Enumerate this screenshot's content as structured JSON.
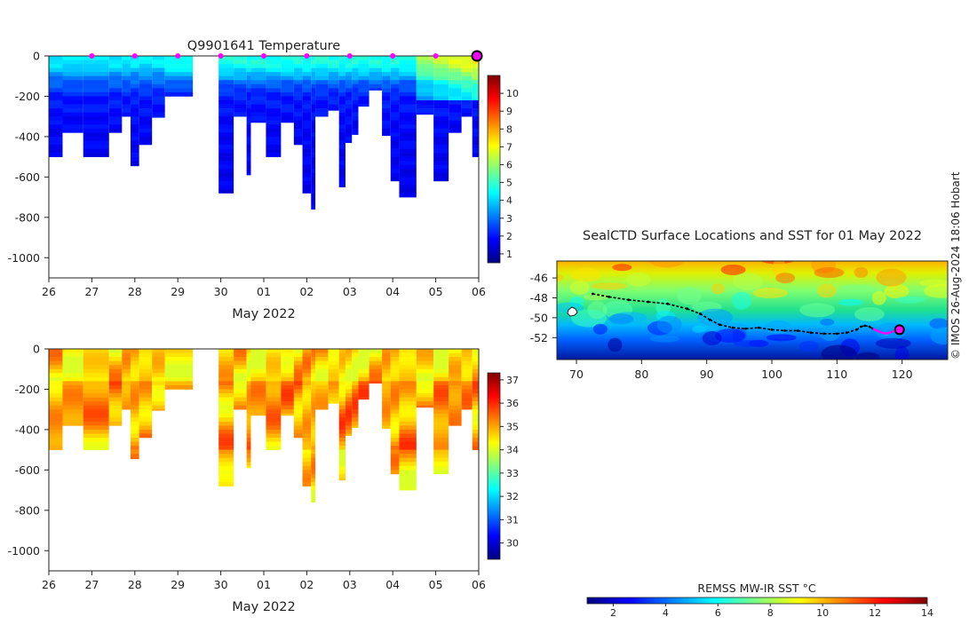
{
  "chart_data": [
    {
      "type": "heatmap",
      "title": "Q9901641  Temperature",
      "xlabel": "May 2022",
      "ylabel": "",
      "xlim": [
        26,
        36
      ],
      "ylim": [
        -1100,
        0
      ],
      "xtick_labels": [
        "26",
        "27",
        "28",
        "29",
        "30",
        "01",
        "02",
        "03",
        "04",
        "05",
        "06"
      ],
      "ytick_labels": [
        "0",
        "-200",
        "-400",
        "-600",
        "-800",
        "-1000"
      ],
      "yticks": [
        0,
        -200,
        -400,
        -600,
        -800,
        -1000
      ],
      "colorbar_ticks": [
        1,
        2,
        3,
        4,
        5,
        6,
        7,
        8,
        9,
        10
      ],
      "colorbar_range": [
        0.5,
        11
      ],
      "surface_markers_days": [
        27,
        28,
        29,
        30,
        31,
        32,
        33,
        34,
        35
      ],
      "current_position_day": 36,
      "profiles": [
        {
          "t0": 26.0,
          "t1": 26.32,
          "depth": 500
        },
        {
          "t0": 26.32,
          "t1": 26.8,
          "depth": 380
        },
        {
          "t0": 26.8,
          "t1": 27.4,
          "depth": 500
        },
        {
          "t0": 27.4,
          "t1": 27.7,
          "depth": 380
        },
        {
          "t0": 27.7,
          "t1": 27.9,
          "depth": 300
        },
        {
          "t0": 27.9,
          "t1": 28.1,
          "depth": 545
        },
        {
          "t0": 28.1,
          "t1": 28.4,
          "depth": 440
        },
        {
          "t0": 28.4,
          "t1": 28.7,
          "depth": 305
        },
        {
          "t0": 28.7,
          "t1": 29.35,
          "depth": 200
        },
        {
          "t0": 29.95,
          "t1": 30.3,
          "depth": 680
        },
        {
          "t0": 30.3,
          "t1": 30.6,
          "depth": 300
        },
        {
          "t0": 30.6,
          "t1": 30.7,
          "depth": 590
        },
        {
          "t0": 30.7,
          "t1": 31.05,
          "depth": 330
        },
        {
          "t0": 31.05,
          "t1": 31.4,
          "depth": 500
        },
        {
          "t0": 31.4,
          "t1": 31.7,
          "depth": 330
        },
        {
          "t0": 31.7,
          "t1": 31.9,
          "depth": 440
        },
        {
          "t0": 31.9,
          "t1": 32.1,
          "depth": 680
        },
        {
          "t0": 32.1,
          "t1": 32.2,
          "depth": 760
        },
        {
          "t0": 32.2,
          "t1": 32.5,
          "depth": 300
        },
        {
          "t0": 32.5,
          "t1": 32.75,
          "depth": 270
        },
        {
          "t0": 32.75,
          "t1": 32.9,
          "depth": 650
        },
        {
          "t0": 32.9,
          "t1": 33.05,
          "depth": 430
        },
        {
          "t0": 33.05,
          "t1": 33.2,
          "depth": 390
        },
        {
          "t0": 33.2,
          "t1": 33.45,
          "depth": 250
        },
        {
          "t0": 33.45,
          "t1": 33.75,
          "depth": 170
        },
        {
          "t0": 33.75,
          "t1": 33.95,
          "depth": 395
        },
        {
          "t0": 33.95,
          "t1": 34.15,
          "depth": 620
        },
        {
          "t0": 34.15,
          "t1": 34.55,
          "depth": 700
        },
        {
          "t0": 34.55,
          "t1": 34.95,
          "depth": 290
        },
        {
          "t0": 34.95,
          "t1": 35.3,
          "depth": 620
        },
        {
          "t0": 35.3,
          "t1": 35.6,
          "depth": 380
        },
        {
          "t0": 35.6,
          "t1": 35.85,
          "depth": 300
        },
        {
          "t0": 35.85,
          "t1": 36.0,
          "depth": 500
        }
      ]
    },
    {
      "type": "heatmap",
      "title": "",
      "xlabel": "May 2022",
      "ylabel": "",
      "xlim": [
        26,
        36
      ],
      "ylim": [
        -1100,
        0
      ],
      "xtick_labels": [
        "26",
        "27",
        "28",
        "29",
        "30",
        "01",
        "02",
        "03",
        "04",
        "05",
        "06"
      ],
      "ytick_labels": [
        "0",
        "-200",
        "-400",
        "-600",
        "-800",
        "-1000"
      ],
      "yticks": [
        0,
        -200,
        -400,
        -600,
        -800,
        -1000
      ],
      "colorbar_ticks": [
        30,
        31,
        32,
        33,
        34,
        35,
        36,
        37
      ],
      "colorbar_range": [
        29.3,
        37.3
      ]
    },
    {
      "type": "map",
      "title": "SealCTD Surface Locations and SST for 01 May 2022",
      "xlim": [
        67,
        127
      ],
      "ylim": [
        -54.2,
        -44.3
      ],
      "xtick_labels": [
        "70",
        "80",
        "90",
        "100",
        "110",
        "120"
      ],
      "xticks": [
        70,
        80,
        90,
        100,
        110,
        120
      ],
      "ytick_labels": [
        "-46",
        "-48",
        "-50",
        "-52"
      ],
      "yticks": [
        -46,
        -48,
        -50,
        -52
      ],
      "colorbar_label": "REMSS MW-IR SST °C",
      "colorbar_ticks": [
        2,
        4,
        6,
        8,
        10,
        12,
        14
      ],
      "colorbar_range": [
        1,
        14
      ],
      "track_lon": [
        72.5,
        75,
        78,
        81,
        84,
        87,
        89,
        90.5,
        92,
        94,
        96,
        98,
        100,
        102,
        104,
        106,
        108,
        110,
        111.5,
        113,
        113.7,
        114.3,
        115,
        115.5
      ],
      "track_lat": [
        -47.6,
        -47.9,
        -48.2,
        -48.4,
        -48.6,
        -49.1,
        -49.6,
        -50.2,
        -50.7,
        -51.0,
        -51.1,
        -51.0,
        -51.2,
        -51.3,
        -51.3,
        -51.5,
        -51.6,
        -51.6,
        -51.5,
        -51.2,
        -50.9,
        -50.8,
        -50.9,
        -51.1
      ],
      "recent_track_lon": [
        115.5,
        116.5,
        117.5,
        118.5,
        119.6
      ],
      "recent_track_lat": [
        -51.1,
        -51.4,
        -51.6,
        -51.4,
        -51.2
      ],
      "current_position": [
        119.6,
        -51.2
      ]
    }
  ],
  "credit": "© IMOS 26-Aug-2024 18:06 Hobart",
  "colors": {
    "jet": [
      "#00007f",
      "#0000ff",
      "#007fff",
      "#00ffff",
      "#7fff7f",
      "#ffff00",
      "#ff7f00",
      "#ff0000",
      "#7f0000"
    ],
    "marker": "#ff00ff",
    "track": "#000000"
  }
}
